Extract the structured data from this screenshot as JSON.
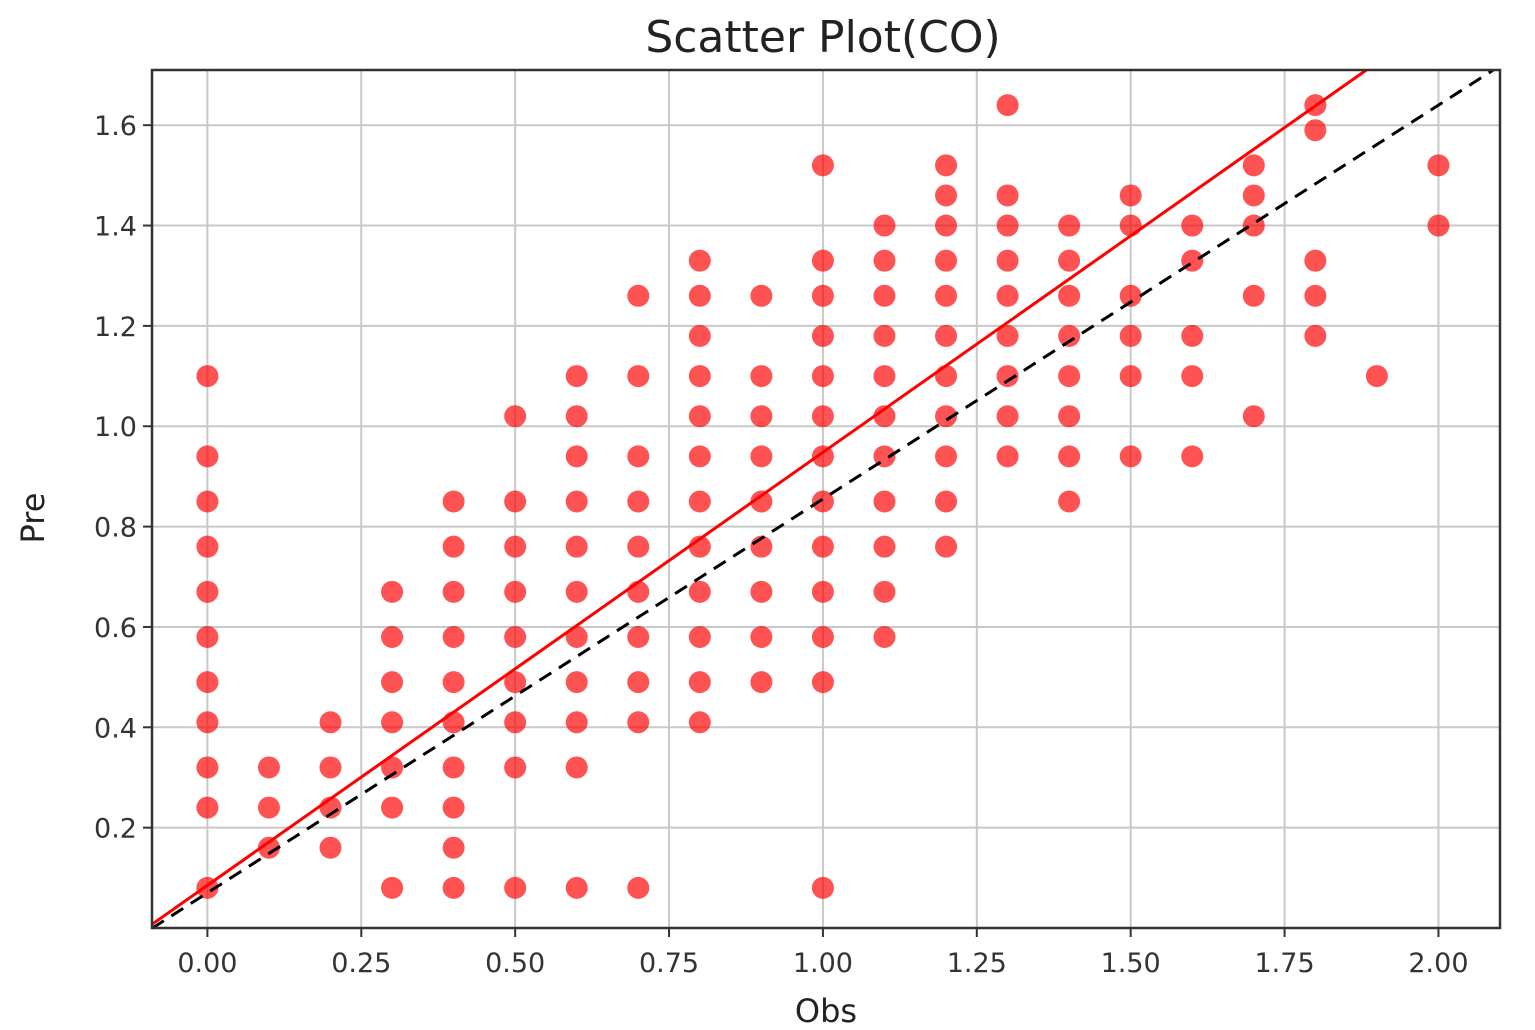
{
  "chart_data": {
    "type": "scatter",
    "title": "Scatter Plot(CO)",
    "xlabel": "Obs",
    "ylabel": "Pre",
    "xlim": [
      -0.09,
      2.1
    ],
    "ylim": [
      0.0,
      1.71
    ],
    "xticks": [
      "0.00",
      "0.25",
      "0.50",
      "0.75",
      "1.00",
      "1.25",
      "1.50",
      "1.75",
      "2.00"
    ],
    "yticks": [
      "0.2",
      "0.4",
      "0.6",
      "0.8",
      "1.0",
      "1.2",
      "1.4",
      "1.6"
    ],
    "grid": true,
    "marker_color": "#ff0000",
    "points": [
      [
        0.0,
        0.08
      ],
      [
        0.0,
        0.24
      ],
      [
        0.0,
        0.32
      ],
      [
        0.0,
        0.41
      ],
      [
        0.0,
        0.49
      ],
      [
        0.0,
        0.58
      ],
      [
        0.0,
        0.67
      ],
      [
        0.0,
        0.76
      ],
      [
        0.0,
        0.85
      ],
      [
        0.0,
        0.94
      ],
      [
        0.0,
        1.1
      ],
      [
        0.1,
        0.16
      ],
      [
        0.1,
        0.24
      ],
      [
        0.1,
        0.32
      ],
      [
        0.2,
        0.16
      ],
      [
        0.2,
        0.24
      ],
      [
        0.2,
        0.32
      ],
      [
        0.2,
        0.41
      ],
      [
        0.3,
        0.08
      ],
      [
        0.3,
        0.24
      ],
      [
        0.3,
        0.32
      ],
      [
        0.3,
        0.41
      ],
      [
        0.3,
        0.49
      ],
      [
        0.3,
        0.58
      ],
      [
        0.3,
        0.67
      ],
      [
        0.4,
        0.08
      ],
      [
        0.4,
        0.16
      ],
      [
        0.4,
        0.24
      ],
      [
        0.4,
        0.32
      ],
      [
        0.4,
        0.41
      ],
      [
        0.4,
        0.49
      ],
      [
        0.4,
        0.58
      ],
      [
        0.4,
        0.67
      ],
      [
        0.4,
        0.76
      ],
      [
        0.4,
        0.85
      ],
      [
        0.5,
        0.08
      ],
      [
        0.5,
        0.32
      ],
      [
        0.5,
        0.41
      ],
      [
        0.5,
        0.49
      ],
      [
        0.5,
        0.58
      ],
      [
        0.5,
        0.67
      ],
      [
        0.5,
        0.76
      ],
      [
        0.5,
        0.85
      ],
      [
        0.5,
        1.02
      ],
      [
        0.6,
        0.08
      ],
      [
        0.6,
        0.32
      ],
      [
        0.6,
        0.41
      ],
      [
        0.6,
        0.49
      ],
      [
        0.6,
        0.58
      ],
      [
        0.6,
        0.67
      ],
      [
        0.6,
        0.76
      ],
      [
        0.6,
        0.85
      ],
      [
        0.6,
        0.94
      ],
      [
        0.6,
        1.02
      ],
      [
        0.6,
        1.1
      ],
      [
        0.7,
        0.08
      ],
      [
        0.7,
        0.41
      ],
      [
        0.7,
        0.49
      ],
      [
        0.7,
        0.58
      ],
      [
        0.7,
        0.67
      ],
      [
        0.7,
        0.76
      ],
      [
        0.7,
        0.85
      ],
      [
        0.7,
        0.94
      ],
      [
        0.7,
        1.1
      ],
      [
        0.7,
        1.26
      ],
      [
        0.8,
        0.41
      ],
      [
        0.8,
        0.49
      ],
      [
        0.8,
        0.58
      ],
      [
        0.8,
        0.67
      ],
      [
        0.8,
        0.76
      ],
      [
        0.8,
        0.85
      ],
      [
        0.8,
        0.94
      ],
      [
        0.8,
        1.02
      ],
      [
        0.8,
        1.1
      ],
      [
        0.8,
        1.18
      ],
      [
        0.8,
        1.26
      ],
      [
        0.8,
        1.33
      ],
      [
        0.9,
        0.49
      ],
      [
        0.9,
        0.58
      ],
      [
        0.9,
        0.67
      ],
      [
        0.9,
        0.76
      ],
      [
        0.9,
        0.85
      ],
      [
        0.9,
        0.94
      ],
      [
        0.9,
        1.02
      ],
      [
        0.9,
        1.1
      ],
      [
        0.9,
        1.26
      ],
      [
        1.0,
        0.08
      ],
      [
        1.0,
        0.49
      ],
      [
        1.0,
        0.58
      ],
      [
        1.0,
        0.67
      ],
      [
        1.0,
        0.76
      ],
      [
        1.0,
        0.85
      ],
      [
        1.0,
        0.94
      ],
      [
        1.0,
        1.02
      ],
      [
        1.0,
        1.1
      ],
      [
        1.0,
        1.18
      ],
      [
        1.0,
        1.26
      ],
      [
        1.0,
        1.33
      ],
      [
        1.0,
        1.52
      ],
      [
        1.1,
        0.58
      ],
      [
        1.1,
        0.67
      ],
      [
        1.1,
        0.76
      ],
      [
        1.1,
        0.85
      ],
      [
        1.1,
        0.94
      ],
      [
        1.1,
        1.02
      ],
      [
        1.1,
        1.1
      ],
      [
        1.1,
        1.18
      ],
      [
        1.1,
        1.26
      ],
      [
        1.1,
        1.33
      ],
      [
        1.1,
        1.4
      ],
      [
        1.2,
        0.76
      ],
      [
        1.2,
        0.85
      ],
      [
        1.2,
        0.94
      ],
      [
        1.2,
        1.02
      ],
      [
        1.2,
        1.1
      ],
      [
        1.2,
        1.18
      ],
      [
        1.2,
        1.26
      ],
      [
        1.2,
        1.33
      ],
      [
        1.2,
        1.4
      ],
      [
        1.2,
        1.46
      ],
      [
        1.2,
        1.52
      ],
      [
        1.3,
        0.94
      ],
      [
        1.3,
        1.02
      ],
      [
        1.3,
        1.1
      ],
      [
        1.3,
        1.18
      ],
      [
        1.3,
        1.26
      ],
      [
        1.3,
        1.33
      ],
      [
        1.3,
        1.4
      ],
      [
        1.3,
        1.46
      ],
      [
        1.3,
        1.64
      ],
      [
        1.4,
        0.85
      ],
      [
        1.4,
        0.94
      ],
      [
        1.4,
        1.02
      ],
      [
        1.4,
        1.1
      ],
      [
        1.4,
        1.18
      ],
      [
        1.4,
        1.26
      ],
      [
        1.4,
        1.33
      ],
      [
        1.4,
        1.4
      ],
      [
        1.5,
        0.94
      ],
      [
        1.5,
        1.1
      ],
      [
        1.5,
        1.18
      ],
      [
        1.5,
        1.26
      ],
      [
        1.5,
        1.4
      ],
      [
        1.5,
        1.46
      ],
      [
        1.6,
        0.94
      ],
      [
        1.6,
        1.1
      ],
      [
        1.6,
        1.18
      ],
      [
        1.6,
        1.33
      ],
      [
        1.6,
        1.4
      ],
      [
        1.7,
        1.02
      ],
      [
        1.7,
        1.26
      ],
      [
        1.7,
        1.4
      ],
      [
        1.7,
        1.46
      ],
      [
        1.7,
        1.52
      ],
      [
        1.8,
        1.18
      ],
      [
        1.8,
        1.26
      ],
      [
        1.8,
        1.33
      ],
      [
        1.8,
        1.59
      ],
      [
        1.8,
        1.64
      ],
      [
        1.9,
        1.1
      ],
      [
        2.0,
        1.4
      ],
      [
        2.0,
        1.52
      ]
    ],
    "fit_line": {
      "color": "#ff0000",
      "style": "solid",
      "slope": 0.863,
      "intercept": 0.085
    },
    "identity_line": {
      "color": "#000000",
      "style": "dashed",
      "slope": 0.785,
      "intercept": 0.07
    }
  }
}
